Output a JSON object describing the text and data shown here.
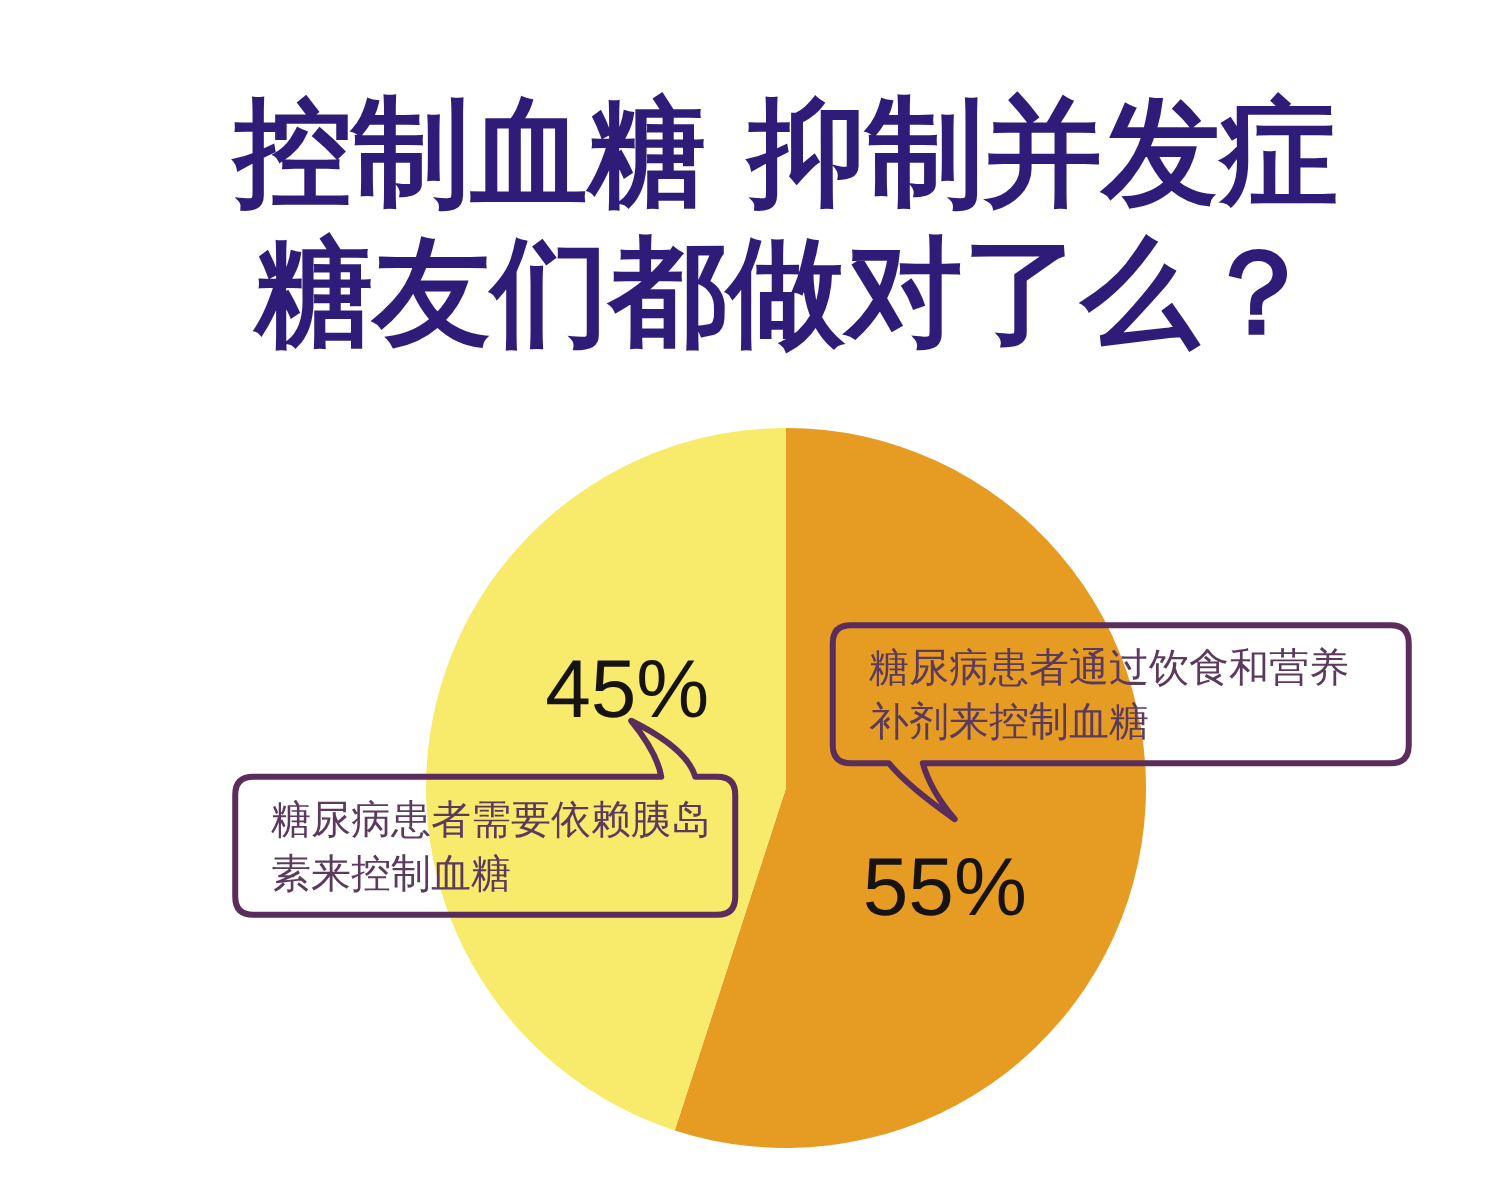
{
  "chart_data": {
    "type": "pie",
    "title": "控制血糖 抑制并发症",
    "subtitle": "糖友们都做对了么？",
    "categories": [
      "糖尿病患者通过饮食和营养补剂来控制血糖",
      "糖尿病患者需要依赖胰岛素来控制血糖"
    ],
    "values": [
      55,
      45
    ],
    "colors": [
      "#e69b22",
      "#f8ea6a"
    ],
    "value_labels": [
      "55%",
      "45%"
    ]
  }
}
